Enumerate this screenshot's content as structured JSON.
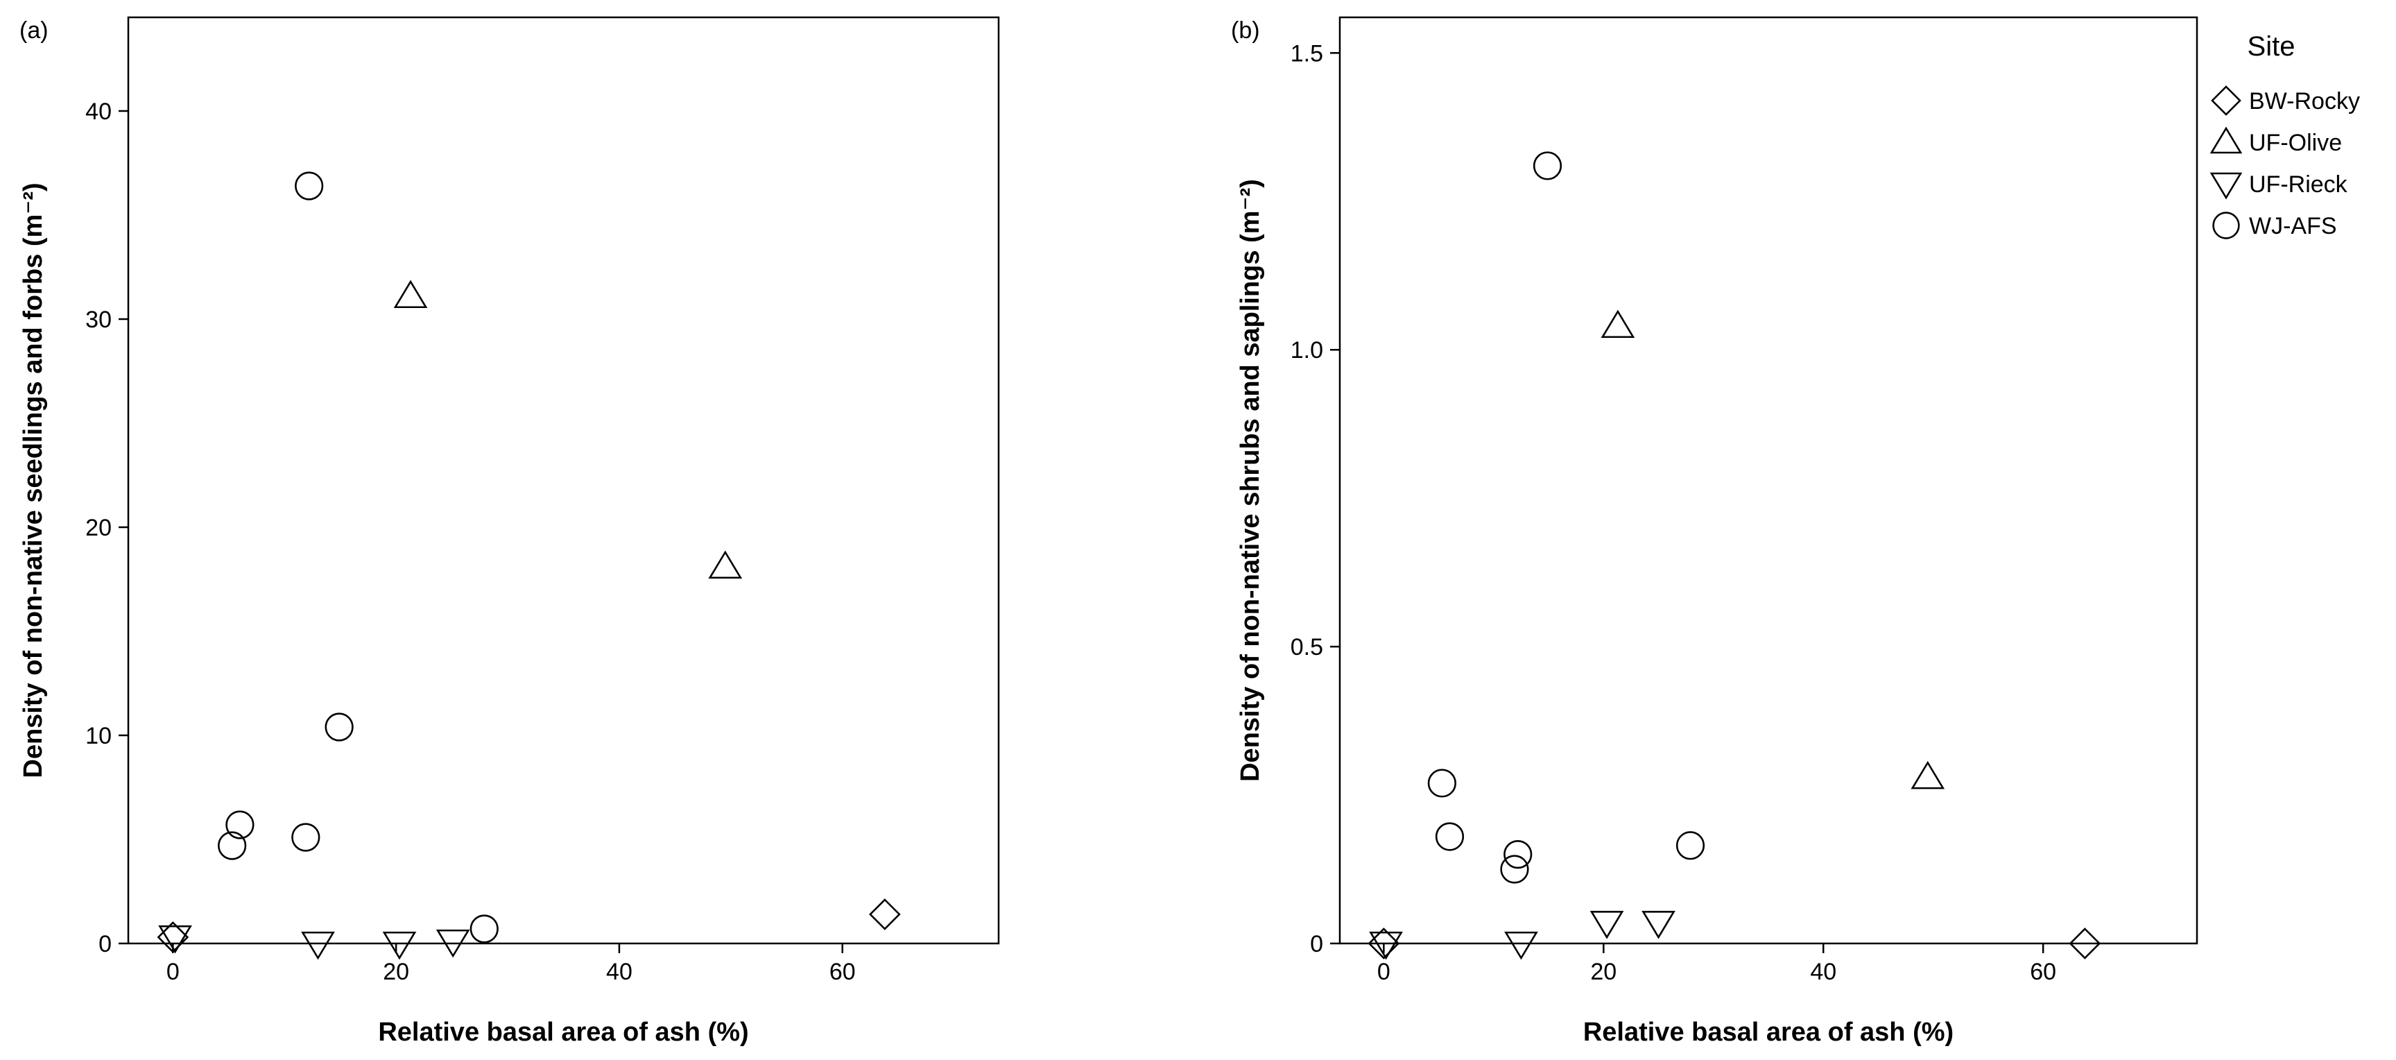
{
  "legend": {
    "title": "Site",
    "items": [
      {
        "name": "BW-Rocky",
        "marker": "diamond"
      },
      {
        "name": "UF-Olive",
        "marker": "triangle-up"
      },
      {
        "name": "UF-Rieck",
        "marker": "triangle-down"
      },
      {
        "name": "WJ-AFS",
        "marker": "circle"
      }
    ]
  },
  "chart_data": [
    {
      "type": "scatter",
      "panel_label": "(a)",
      "xlabel": "Relative basal area of ash (%)",
      "ylabel": "Density of non-native seedlings and forbs (m⁻²)",
      "xlim": [
        -4,
        74
      ],
      "ylim": [
        0,
        44.5
      ],
      "xticks": [
        0,
        20,
        40,
        60
      ],
      "yticks": [
        0,
        10,
        20,
        30,
        40
      ],
      "ytick_labels": [
        "0",
        "10",
        "20",
        "30",
        "40"
      ],
      "grid": false,
      "series": [
        {
          "name": "BW-Rocky",
          "marker": "diamond",
          "points": [
            [
              0,
              0.3
            ],
            [
              63.8,
              1.4
            ]
          ]
        },
        {
          "name": "UF-Olive",
          "marker": "triangle-up",
          "points": [
            [
              21.3,
              31.1
            ],
            [
              49.5,
              18.1
            ]
          ]
        },
        {
          "name": "UF-Rieck",
          "marker": "triangle-down",
          "points": [
            [
              0.2,
              0.3
            ],
            [
              13,
              0
            ],
            [
              20.3,
              0
            ],
            [
              25.1,
              0.1
            ]
          ]
        },
        {
          "name": "WJ-AFS",
          "marker": "circle",
          "points": [
            [
              12.2,
              36.4
            ],
            [
              14.9,
              10.4
            ],
            [
              6,
              5.7
            ],
            [
              5.3,
              4.7
            ],
            [
              11.9,
              5.1
            ],
            [
              27.9,
              0.7
            ]
          ]
        }
      ]
    },
    {
      "type": "scatter",
      "panel_label": "(b)",
      "xlabel": "Relative basal area of ash (%)",
      "ylabel": "Density of non-native shrubs and saplings (m⁻²)",
      "xlim": [
        -4,
        74
      ],
      "ylim": [
        0,
        1.56
      ],
      "xticks": [
        0,
        20,
        40,
        60
      ],
      "yticks": [
        0,
        0.5,
        1.0,
        1.5
      ],
      "ytick_labels": [
        "0",
        "0.5",
        "1.0",
        "1.5"
      ],
      "grid": false,
      "series": [
        {
          "name": "BW-Rocky",
          "marker": "diamond",
          "points": [
            [
              0,
              0.0
            ],
            [
              63.8,
              0.0
            ]
          ]
        },
        {
          "name": "UF-Olive",
          "marker": "triangle-up",
          "points": [
            [
              21.3,
              1.04
            ],
            [
              49.5,
              0.28
            ]
          ]
        },
        {
          "name": "UF-Rieck",
          "marker": "triangle-down",
          "points": [
            [
              0.2,
              0.0
            ],
            [
              12.5,
              0.0
            ],
            [
              20.3,
              0.035
            ],
            [
              25,
              0.035
            ]
          ]
        },
        {
          "name": "WJ-AFS",
          "marker": "circle",
          "points": [
            [
              14.9,
              1.31
            ],
            [
              5.3,
              0.27
            ],
            [
              6,
              0.18
            ],
            [
              12.2,
              0.15
            ],
            [
              11.9,
              0.125
            ],
            [
              27.9,
              0.165
            ]
          ]
        }
      ]
    }
  ]
}
